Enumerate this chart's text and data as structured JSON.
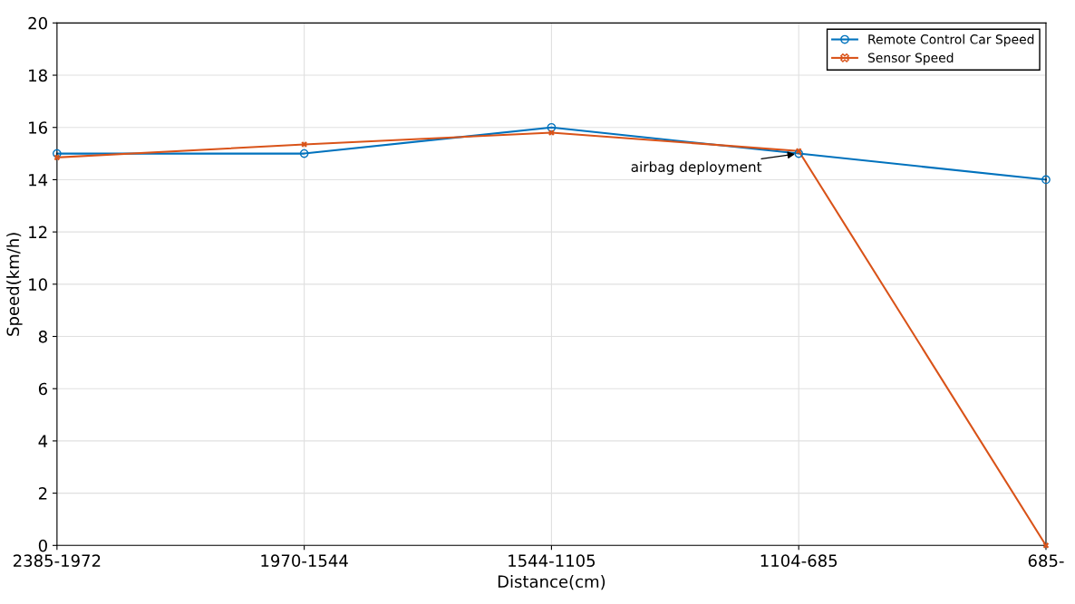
{
  "chart_data": {
    "type": "line",
    "xlabel": "Distance(cm)",
    "ylabel": "Speed(km/h)",
    "categories": [
      "2385-1972",
      "1970-1544",
      "1544-1105",
      "1104-685",
      "685-"
    ],
    "series": [
      {
        "name": "Remote Control Car Speed",
        "color": "#0072bd",
        "marker": "circle",
        "values": [
          15,
          15,
          16,
          15,
          14
        ]
      },
      {
        "name": "Sensor Speed",
        "color": "#d95319",
        "marker": "cross",
        "values": [
          14.85,
          15.35,
          15.8,
          15.1,
          0
        ]
      }
    ],
    "ylim": [
      0,
      20
    ],
    "yticks": [
      0,
      2,
      4,
      6,
      8,
      10,
      12,
      14,
      16,
      18,
      20
    ],
    "grid": true,
    "legend": "top right",
    "line_style": "solid",
    "annotations": [
      {
        "text": "airbag deployment",
        "x": "1104-685",
        "y": 15
      }
    ]
  }
}
